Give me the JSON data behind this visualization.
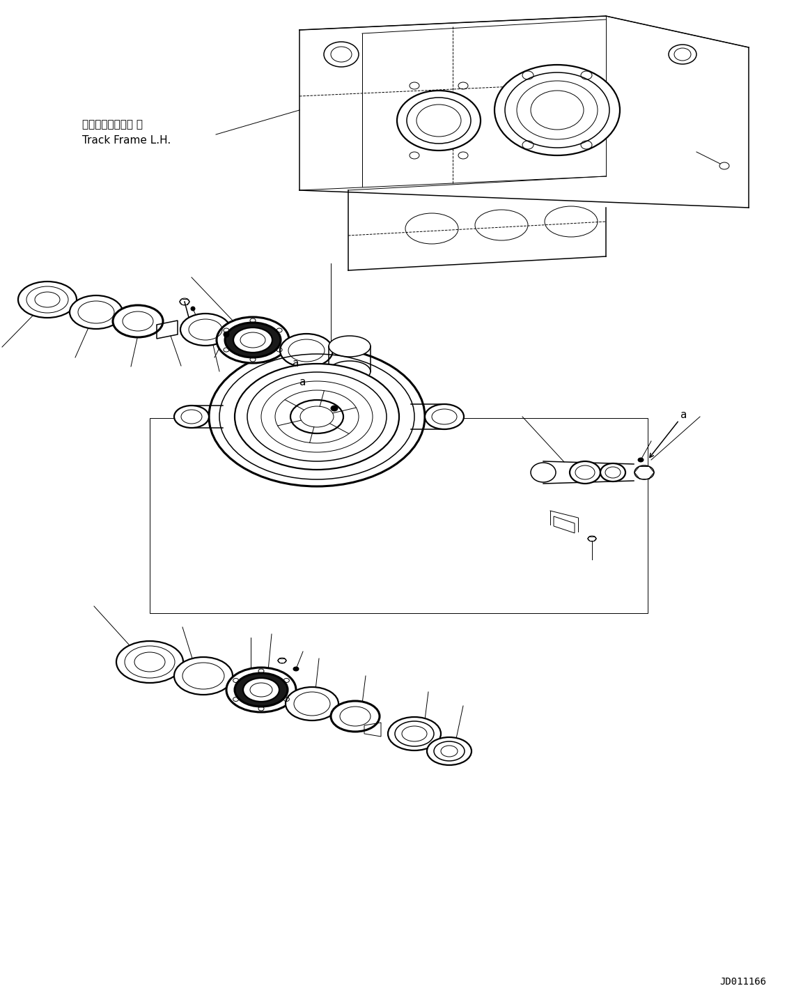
{
  "background_color": "#ffffff",
  "line_color": "#000000",
  "label_japanese": "トラックフレーム 左",
  "label_english": "Track Frame L.H.",
  "diagram_id": "JD011166",
  "lw_thin": 0.7,
  "lw_med": 1.1,
  "lw_thick": 1.6,
  "lw_xthick": 2.2
}
